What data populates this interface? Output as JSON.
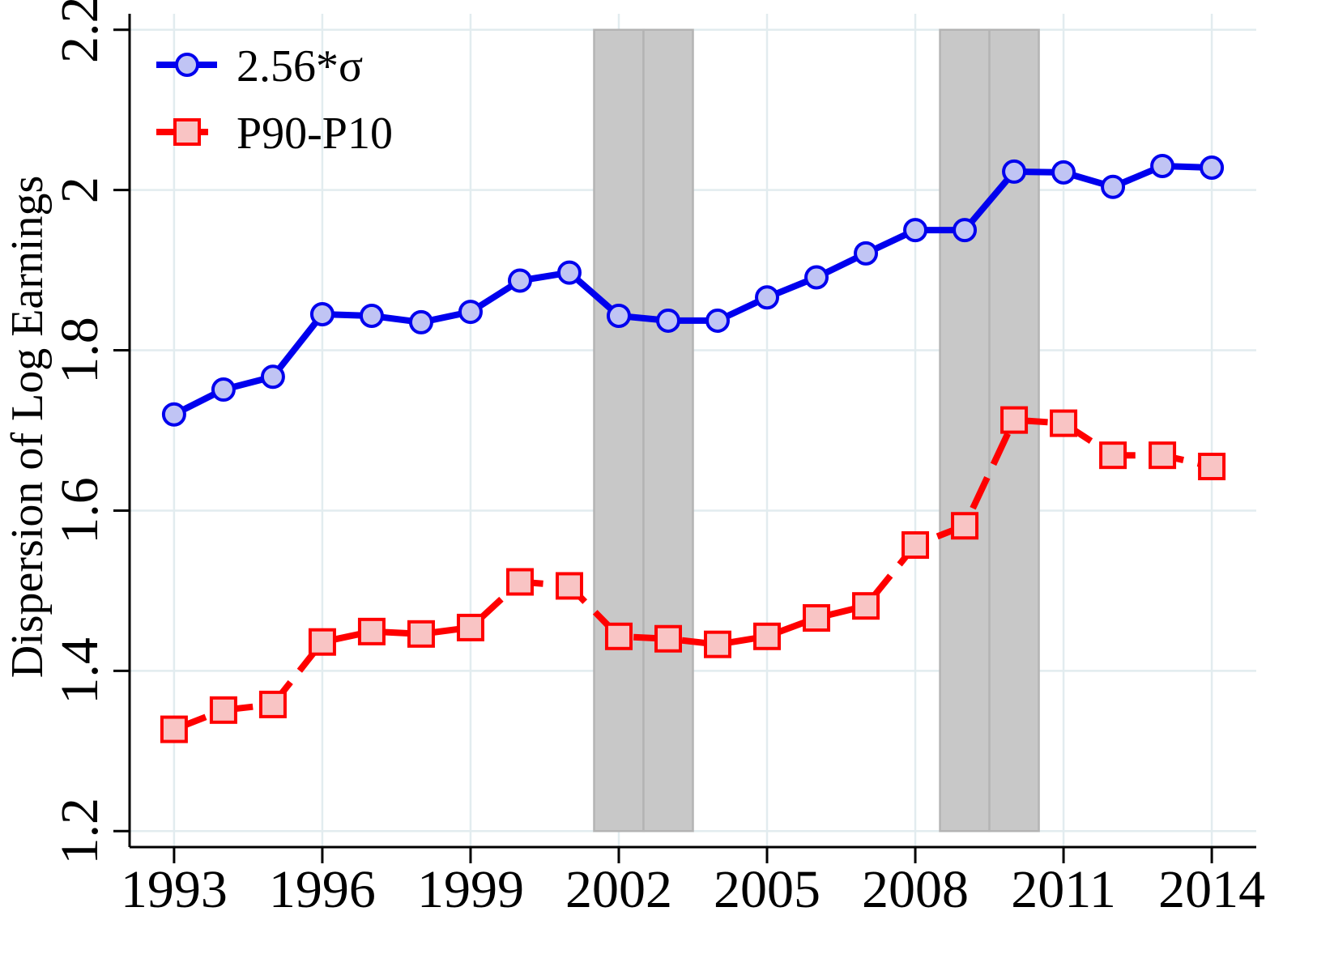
{
  "chart_data": {
    "type": "line",
    "title": "",
    "xlabel": "",
    "ylabel": "Dispersion of Log Earnings",
    "xlim": [
      1992.1,
      2014.9
    ],
    "ylim": [
      1.18,
      2.22
    ],
    "x_ticks": [
      1993,
      1996,
      1999,
      2002,
      2005,
      2008,
      2011,
      2014
    ],
    "y_ticks": [
      1.2,
      1.4,
      1.6,
      1.8,
      2,
      2.2
    ],
    "x_tick_labels": [
      "1993",
      "1996",
      "1999",
      "2002",
      "2005",
      "2008",
      "2011",
      "2014"
    ],
    "y_tick_labels": [
      "1.2",
      "1.4",
      "1.6",
      "1.8",
      "2",
      "2.2"
    ],
    "grid": true,
    "legend_position": "top-left",
    "x": [
      1993,
      1994,
      1995,
      1996,
      1997,
      1998,
      1999,
      2000,
      2001,
      2002,
      2003,
      2004,
      2005,
      2006,
      2007,
      2008,
      2009,
      2010,
      2011,
      2012,
      2013,
      2014
    ],
    "series": [
      {
        "name": "2.56*σ",
        "color": "#0000ee",
        "marker": "circle",
        "marker_fill": "#c0c4f4",
        "line_style": "solid",
        "values": [
          1.72,
          1.751,
          1.767,
          1.845,
          1.843,
          1.835,
          1.848,
          1.887,
          1.897,
          1.843,
          1.837,
          1.837,
          1.866,
          1.891,
          1.921,
          1.95,
          1.95,
          2.023,
          2.022,
          2.004,
          2.03,
          2.028
        ]
      },
      {
        "name": "P90-P10",
        "color": "#ff0000",
        "marker": "square",
        "marker_fill": "#f9c4c4",
        "line_style": "dashed",
        "values": [
          1.327,
          1.351,
          1.358,
          1.436,
          1.449,
          1.446,
          1.454,
          1.511,
          1.506,
          1.443,
          1.44,
          1.433,
          1.443,
          1.466,
          1.481,
          1.557,
          1.581,
          1.713,
          1.709,
          1.669,
          1.669,
          1.655
        ]
      }
    ],
    "shaded_regions": [
      {
        "x_start": 2001.5,
        "x_end": 2002.5,
        "color": "#c8c8c8"
      },
      {
        "x_start": 2002.5,
        "x_end": 2003.5,
        "color": "#c8c8c8"
      },
      {
        "x_start": 2008.5,
        "x_end": 2009.5,
        "color": "#c8c8c8"
      },
      {
        "x_start": 2009.5,
        "x_end": 2010.5,
        "color": "#c8c8c8"
      }
    ],
    "shade_ylim": [
      1.2,
      2.2
    ]
  }
}
